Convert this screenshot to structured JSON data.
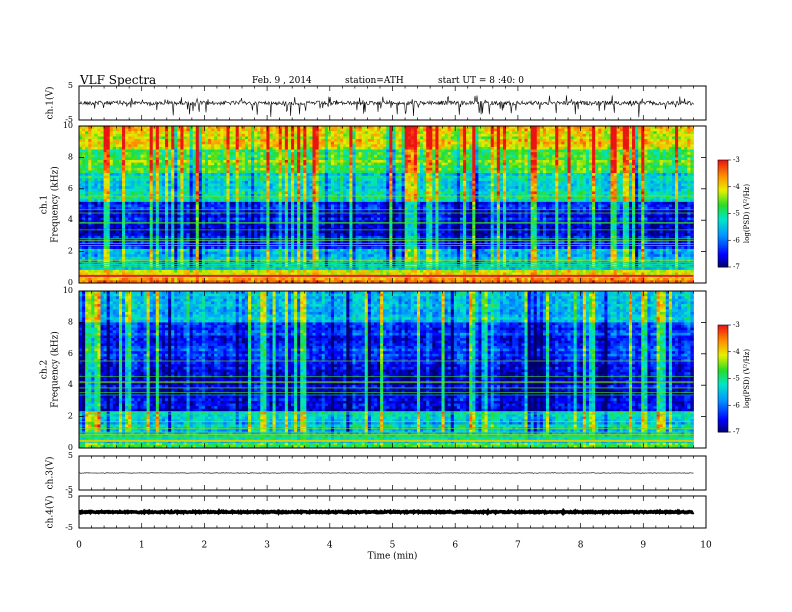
{
  "header": {
    "title": "VLF Spectra",
    "date": "Feb. 9 , 2014",
    "station": "station=ATH",
    "start": "start UT = 8 :40: 0"
  },
  "chart_data": [
    {
      "type": "line",
      "name": "ch1-waveform",
      "ylabel": "ch.1(V)",
      "ylim": [
        -5,
        5
      ],
      "y_ticks": [
        "5",
        "-5"
      ],
      "x_range": [
        0,
        10
      ],
      "trace_end": 9.8,
      "baseline": 0
    },
    {
      "type": "heatmap",
      "name": "ch1-spectrogram",
      "ylabel": "ch.1\nFrequency (kHz)",
      "ylim": [
        0,
        10
      ],
      "y_ticks": [
        "0",
        "2",
        "4",
        "6",
        "8",
        "10"
      ],
      "x_range": [
        0,
        10
      ],
      "data_end": 9.8,
      "colorbar": {
        "label": "log(PSD) (V²/Hz)",
        "range": [
          -7,
          -3
        ],
        "ticks": [
          "-7",
          "-6",
          "-5",
          "-4",
          "-3"
        ]
      },
      "bands": [
        {
          "fmin": 0.0,
          "fmax": 0.3,
          "logpsd": -3.6
        },
        {
          "fmin": 0.3,
          "fmax": 0.8,
          "logpsd": -4.0
        },
        {
          "fmin": 0.8,
          "fmax": 2.2,
          "logpsd": -5.6
        },
        {
          "fmin": 2.2,
          "fmax": 5.2,
          "logpsd": -6.5
        },
        {
          "fmin": 5.2,
          "fmax": 7.0,
          "logpsd": -5.3
        },
        {
          "fmin": 7.0,
          "fmax": 8.5,
          "logpsd": -4.6
        },
        {
          "fmin": 8.5,
          "fmax": 10.0,
          "logpsd": -4.1
        }
      ]
    },
    {
      "type": "heatmap",
      "name": "ch2-spectrogram",
      "ylabel": "ch.2\nFrequency (kHz)",
      "ylim": [
        0,
        10
      ],
      "y_ticks": [
        "0",
        "2",
        "4",
        "6",
        "8",
        "10"
      ],
      "x_range": [
        0,
        10
      ],
      "data_end": 9.8,
      "colorbar": {
        "label": "log(PSD) (V²/Hz)",
        "range": [
          -7,
          -3
        ],
        "ticks": [
          "-7",
          "-6",
          "-5",
          "-4",
          "-3"
        ]
      },
      "bands": [
        {
          "fmin": 0.0,
          "fmax": 0.3,
          "logpsd": -4.7
        },
        {
          "fmin": 0.3,
          "fmax": 2.4,
          "logpsd": -5.4
        },
        {
          "fmin": 2.4,
          "fmax": 5.5,
          "logpsd": -6.6
        },
        {
          "fmin": 5.5,
          "fmax": 8.0,
          "logpsd": -6.3
        },
        {
          "fmin": 8.0,
          "fmax": 10.0,
          "logpsd": -5.5
        }
      ]
    },
    {
      "type": "line",
      "name": "ch3-waveform",
      "ylabel": "ch.3(V)",
      "ylim": [
        -5,
        5
      ],
      "y_ticks": [
        "5",
        "-5"
      ],
      "x_range": [
        0,
        10
      ],
      "trace_end": 9.8,
      "baseline": 0
    },
    {
      "type": "line",
      "name": "ch4-waveform",
      "ylabel": "ch.4(V)",
      "ylim": [
        -5,
        5
      ],
      "y_ticks": [
        "5",
        "-5"
      ],
      "x_range": [
        0,
        10
      ],
      "trace_end": 9.8,
      "baseline": 0
    }
  ],
  "xaxis": {
    "label": "Time (min)",
    "ticks": [
      "0",
      "1",
      "2",
      "3",
      "4",
      "5",
      "6",
      "7",
      "8",
      "9",
      "10"
    ]
  }
}
